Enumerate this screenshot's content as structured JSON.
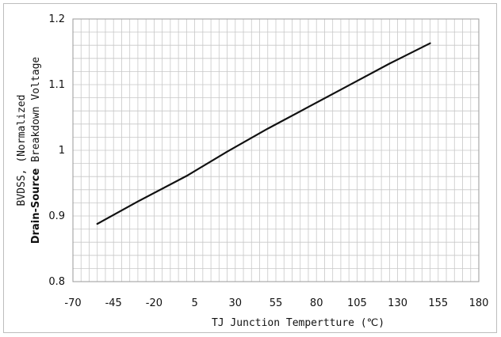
{
  "chart_data": {
    "type": "line",
    "title": "",
    "xlabel": "TJ  Junction Tempertture  (℃)",
    "ylabel_line1": "BVDSS, (Normalized",
    "ylabel_line2_bold": "Drain-Source",
    "ylabel_line2_rest": " Breakdown Voltage",
    "xlim": [
      -70,
      180
    ],
    "ylim": [
      0.8,
      1.2
    ],
    "x_ticks": [
      -70,
      -45,
      -20,
      5,
      30,
      55,
      80,
      105,
      130,
      155,
      180
    ],
    "y_ticks": [
      0.8,
      0.9,
      1.0,
      1.1,
      1.2
    ],
    "x_tick_labels": [
      "-70",
      "-45",
      "-20",
      "5",
      "30",
      "55",
      "80",
      "105",
      "130",
      "155",
      "180"
    ],
    "y_tick_labels": [
      "0.8",
      "0.9",
      "1",
      "1.1",
      "1.2"
    ],
    "x_minor_step": 5,
    "y_minor_step": 0.02,
    "grid": true,
    "legend": "none",
    "line_color": "#111111",
    "grid_color": "#c8c8c8",
    "series": [
      {
        "x": [
          -55,
          -30,
          0,
          25,
          50,
          75,
          100,
          125,
          150
        ],
        "y": [
          0.888,
          0.922,
          0.961,
          0.998,
          1.033,
          1.066,
          1.099,
          1.132,
          1.163
        ]
      }
    ]
  }
}
